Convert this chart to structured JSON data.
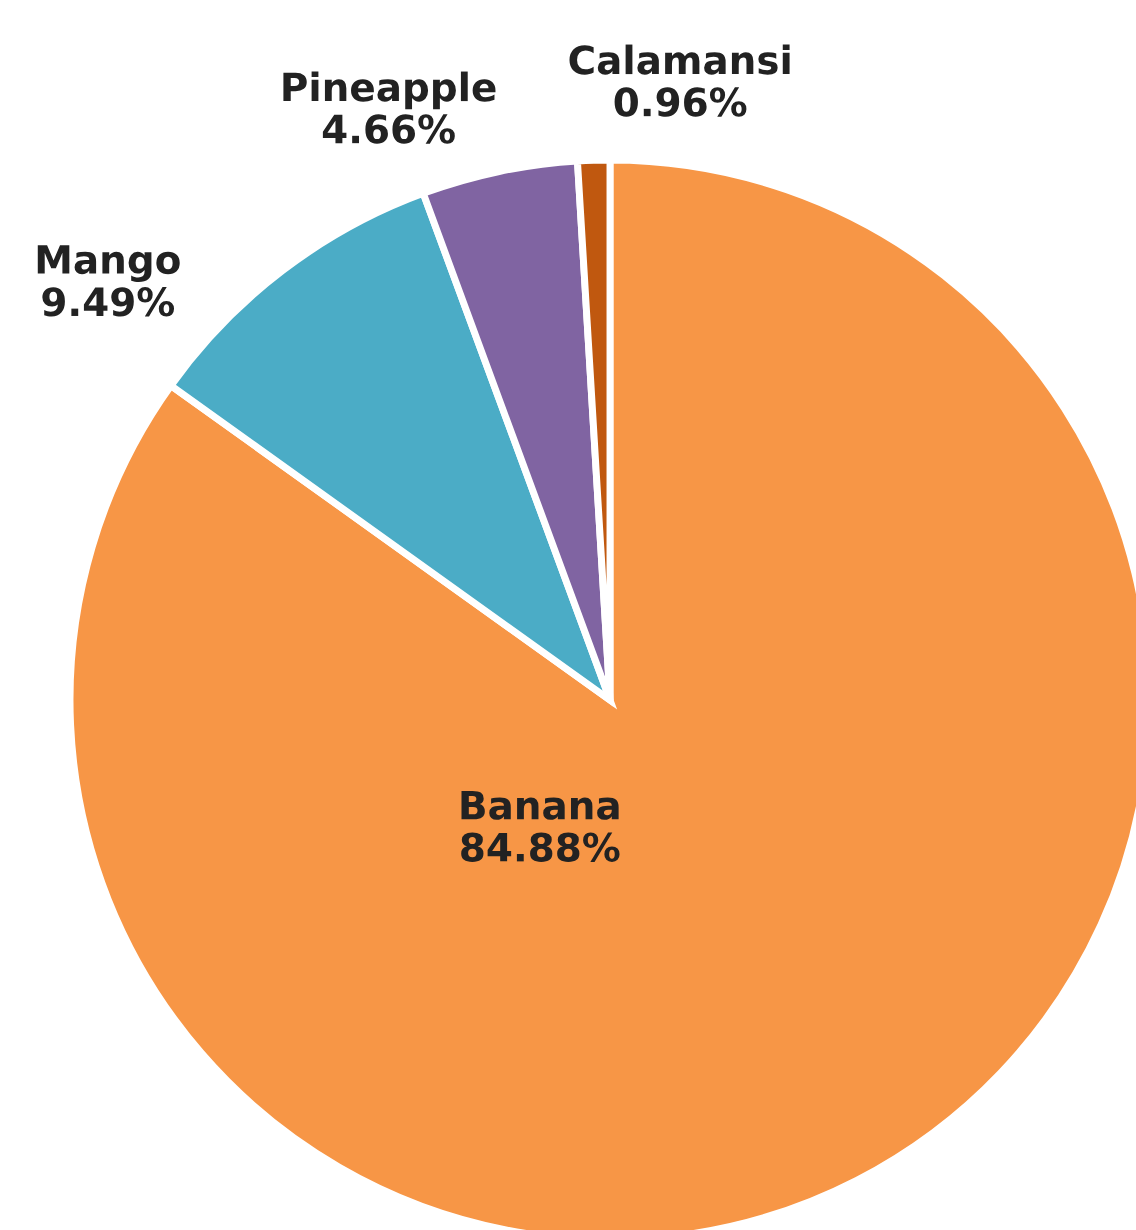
{
  "chart_data": {
    "type": "pie",
    "categories": [
      "Banana",
      "Mango",
      "Pineapple",
      "Calamansi"
    ],
    "values": [
      84.88,
      9.49,
      4.66,
      0.96
    ],
    "value_labels": [
      "84.88%",
      "9.49%",
      "4.66%",
      "0.96%"
    ],
    "colors": [
      "#f79646",
      "#4bacc6",
      "#8064a2",
      "#c0580f"
    ],
    "legend": false
  }
}
